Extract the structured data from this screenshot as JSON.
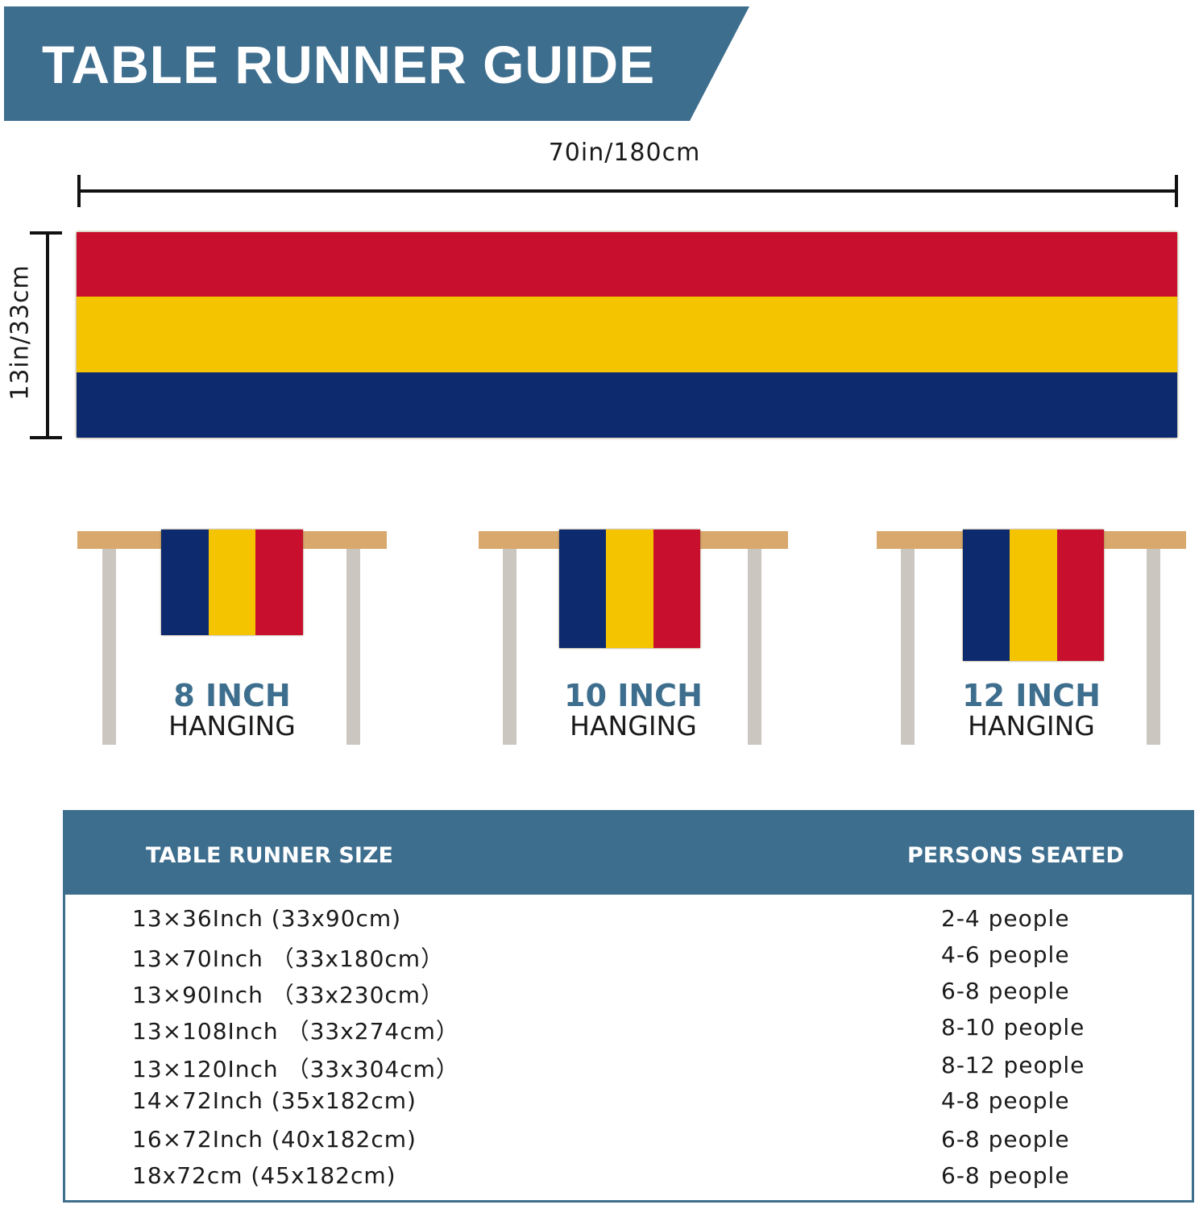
{
  "title": "TABLE RUNNER GUIDE",
  "runner": {
    "width_label": "70in/180cm",
    "height_label": "13in/33cm",
    "colors": {
      "red": "#c8102e",
      "yellow": "#f5c400",
      "blue": "#0e2a6e"
    }
  },
  "hanging": [
    {
      "size": "8 INCH",
      "label": "HANGING"
    },
    {
      "size": "10 INCH",
      "label": "HANGING"
    },
    {
      "size": "12 INCH",
      "label": "HANGING"
    }
  ],
  "size_table": {
    "headers": [
      "TABLE RUNNER SIZE",
      "PERSONS SEATED"
    ],
    "rows": [
      [
        "13×36Inch (33x90cm)",
        "2-4 people"
      ],
      [
        "13×70Inch （33x180cm）",
        "4-6 people"
      ],
      [
        "13×90Inch （33x230cm）",
        "6-8 people"
      ],
      [
        "13×108Inch （33x274cm）",
        "8-10 people"
      ],
      [
        "13×120Inch （33x304cm）",
        "8-12 people"
      ],
      [
        "14×72Inch (35x182cm)",
        "4-8 people"
      ],
      [
        "16×72Inch (40x182cm)",
        "6-8 people"
      ],
      [
        "18x72cm (45x182cm)",
        "6-8 people"
      ]
    ]
  },
  "accent": "#3e6e8e"
}
